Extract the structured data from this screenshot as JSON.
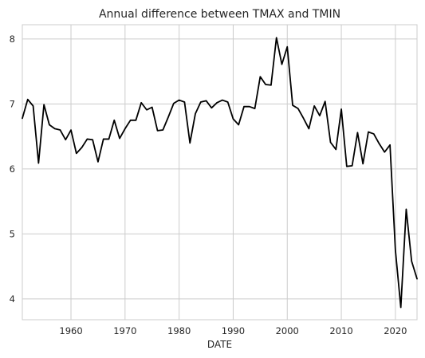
{
  "chart_data": {
    "type": "line",
    "title": "Annual difference between TMAX and TMIN",
    "xlabel": "DATE",
    "ylabel": "",
    "xlim": [
      1951,
      2024
    ],
    "ylim": [
      3.68,
      8.22
    ],
    "grid": true,
    "x_ticks": [
      1960,
      1970,
      1980,
      1990,
      2000,
      2010,
      2020
    ],
    "y_ticks": [
      4,
      5,
      6,
      7,
      8
    ],
    "series": [
      {
        "color": "#000000",
        "x": [
          1951,
          1952,
          1953,
          1954,
          1955,
          1956,
          1957,
          1958,
          1959,
          1960,
          1961,
          1962,
          1963,
          1964,
          1965,
          1966,
          1967,
          1968,
          1969,
          1970,
          1971,
          1972,
          1973,
          1974,
          1975,
          1976,
          1977,
          1978,
          1979,
          1980,
          1981,
          1982,
          1983,
          1984,
          1985,
          1986,
          1987,
          1988,
          1989,
          1990,
          1991,
          1992,
          1993,
          1994,
          1995,
          1996,
          1997,
          1998,
          1999,
          2000,
          2001,
          2002,
          2003,
          2004,
          2005,
          2006,
          2007,
          2008,
          2009,
          2010,
          2011,
          2012,
          2013,
          2014,
          2015,
          2016,
          2017,
          2018,
          2019,
          2020,
          2021,
          2022,
          2023,
          2024
        ],
        "values": [
          6.78,
          7.07,
          6.97,
          6.09,
          6.99,
          6.68,
          6.62,
          6.6,
          6.45,
          6.6,
          6.24,
          6.33,
          6.46,
          6.45,
          6.11,
          6.46,
          6.46,
          6.75,
          6.47,
          6.62,
          6.75,
          6.75,
          7.02,
          6.91,
          6.95,
          6.59,
          6.6,
          6.8,
          7.01,
          7.06,
          7.03,
          6.4,
          6.85,
          7.03,
          7.05,
          6.94,
          7.02,
          7.06,
          7.03,
          6.77,
          6.68,
          6.96,
          6.96,
          6.93,
          7.42,
          7.3,
          7.29,
          8.02,
          7.61,
          7.88,
          6.98,
          6.93,
          6.78,
          6.62,
          6.97,
          6.82,
          7.04,
          6.41,
          6.3,
          6.92,
          6.04,
          6.05,
          6.56,
          6.08,
          6.57,
          6.54,
          6.39,
          6.26,
          6.37,
          4.75,
          3.87,
          5.38,
          4.58,
          4.31
        ]
      }
    ]
  }
}
